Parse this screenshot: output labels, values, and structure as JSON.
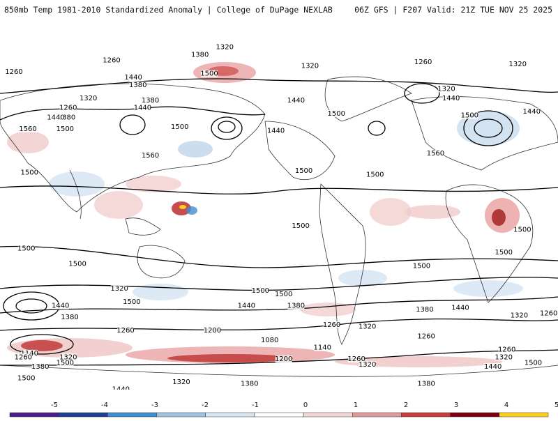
{
  "header": {
    "left": "850mb Temp 1981-2010 Standardized Anomaly | College of DuPage NEXLAB",
    "right": "06Z GFS | F207 Valid: 21Z TUE NOV 25 2025"
  },
  "map": {
    "projection": "cylindrical-equidistant",
    "lon_range": [
      30,
      390
    ],
    "lat_range": [
      -78,
      85
    ],
    "contour_labels": [
      {
        "text": "1320",
        "lon": 175,
        "lat": 79
      },
      {
        "text": "1380",
        "lon": 159,
        "lat": 75
      },
      {
        "text": "1260",
        "lon": 102,
        "lat": 72
      },
      {
        "text": "1260",
        "lon": 39,
        "lat": 66
      },
      {
        "text": "1440",
        "lon": 116,
        "lat": 63
      },
      {
        "text": "1380",
        "lon": 119,
        "lat": 59
      },
      {
        "text": "1500",
        "lon": 165,
        "lat": 65
      },
      {
        "text": "1380",
        "lon": 127,
        "lat": 51
      },
      {
        "text": "1440",
        "lon": 122,
        "lat": 47
      },
      {
        "text": "1320",
        "lon": 87,
        "lat": 52
      },
      {
        "text": "1260",
        "lon": 74,
        "lat": 47
      },
      {
        "text": "1380",
        "lon": 73,
        "lat": 42
      },
      {
        "text": "1440",
        "lon": 66,
        "lat": 42
      },
      {
        "text": "1500",
        "lon": 72,
        "lat": 36
      },
      {
        "text": "1560",
        "lon": 48,
        "lat": 36
      },
      {
        "text": "1500",
        "lon": 146,
        "lat": 37
      },
      {
        "text": "1560",
        "lon": 127,
        "lat": 22
      },
      {
        "text": "1500",
        "lon": 49,
        "lat": 13
      },
      {
        "text": "1500",
        "lon": 226,
        "lat": 14
      },
      {
        "text": "1500",
        "lon": 224,
        "lat": -15
      },
      {
        "text": "1500",
        "lon": 47,
        "lat": -27
      },
      {
        "text": "1500",
        "lon": 80,
        "lat": -35
      },
      {
        "text": "1500",
        "lon": 115,
        "lat": -55
      },
      {
        "text": "1320",
        "lon": 107,
        "lat": -48
      },
      {
        "text": "1440",
        "lon": 69,
        "lat": -57
      },
      {
        "text": "1380",
        "lon": 75,
        "lat": -63
      },
      {
        "text": "1260",
        "lon": 111,
        "lat": -70
      },
      {
        "text": "1200",
        "lon": 167,
        "lat": -70
      },
      {
        "text": "1080",
        "lon": 204,
        "lat": -75
      },
      {
        "text": "1140",
        "lon": 238,
        "lat": -79
      },
      {
        "text": "1440",
        "lon": 189,
        "lat": -57
      },
      {
        "text": "1380",
        "lon": 221,
        "lat": -57
      },
      {
        "text": "1500",
        "lon": 213,
        "lat": -51
      },
      {
        "text": "1260",
        "lon": 244,
        "lat": -67
      },
      {
        "text": "1320",
        "lon": 267,
        "lat": -68
      },
      {
        "text": "1200",
        "lon": 213,
        "lat": -85
      },
      {
        "text": "1260",
        "lon": 260,
        "lat": -85
      },
      {
        "text": "1320",
        "lon": 267,
        "lat": -88
      },
      {
        "text": "1380",
        "lon": 304,
        "lat": -59
      },
      {
        "text": "1440",
        "lon": 327,
        "lat": -58
      },
      {
        "text": "1320",
        "lon": 365,
        "lat": -62
      },
      {
        "text": "1260",
        "lon": 384,
        "lat": -61
      },
      {
        "text": "1260",
        "lon": 305,
        "lat": -73
      },
      {
        "text": "1260",
        "lon": 357,
        "lat": -80
      },
      {
        "text": "1320",
        "lon": 355,
        "lat": -84
      },
      {
        "text": "1440",
        "lon": 348,
        "lat": -89
      },
      {
        "text": "1500",
        "lon": 374,
        "lat": -87
      },
      {
        "text": "1140",
        "lon": 49,
        "lat": -82
      },
      {
        "text": "1260",
        "lon": 45,
        "lat": -84
      },
      {
        "text": "1320",
        "lon": 74,
        "lat": -84
      },
      {
        "text": "1500",
        "lon": 72,
        "lat": -87
      },
      {
        "text": "1380",
        "lon": 56,
        "lat": -89
      },
      {
        "text": "1500",
        "lon": 47,
        "lat": -95
      },
      {
        "text": "1440",
        "lon": 108,
        "lat": -101
      },
      {
        "text": "1320",
        "lon": 147,
        "lat": -97
      },
      {
        "text": "1380",
        "lon": 191,
        "lat": -98
      },
      {
        "text": "1380",
        "lon": 305,
        "lat": -98
      },
      {
        "text": "1260",
        "lon": 303,
        "lat": 71
      },
      {
        "text": "1320",
        "lon": 230,
        "lat": 69
      },
      {
        "text": "1320",
        "lon": 364,
        "lat": 70
      },
      {
        "text": "1320",
        "lon": 318,
        "lat": 57
      },
      {
        "text": "1440",
        "lon": 321,
        "lat": 52
      },
      {
        "text": "1440",
        "lon": 221,
        "lat": 51
      },
      {
        "text": "1500",
        "lon": 247,
        "lat": 44
      },
      {
        "text": "1440",
        "lon": 208,
        "lat": 35
      },
      {
        "text": "1500",
        "lon": 333,
        "lat": 43
      },
      {
        "text": "1440",
        "lon": 373,
        "lat": 45
      },
      {
        "text": "1560",
        "lon": 311,
        "lat": 23
      },
      {
        "text": "1500",
        "lon": 272,
        "lat": 12
      },
      {
        "text": "1500",
        "lon": 367,
        "lat": -17
      },
      {
        "text": "1500",
        "lon": 355,
        "lat": -29
      },
      {
        "text": "1500",
        "lon": 302,
        "lat": -36
      },
      {
        "text": "1500",
        "lon": 198,
        "lat": -49
      }
    ]
  },
  "legend": {
    "ticks": [
      "-5",
      "-4",
      "-3",
      "-2",
      "-1",
      "0",
      "1",
      "2",
      "3",
      "4",
      "5"
    ],
    "colors": [
      "#4a1f8a",
      "#1f3f8f",
      "#3f8fd0",
      "#9ec4e4",
      "#d8e6f2",
      "#ffffff",
      "#f4d6d6",
      "#e09a9a",
      "#c83c3c",
      "#7a0010",
      "#ffd020"
    ]
  }
}
